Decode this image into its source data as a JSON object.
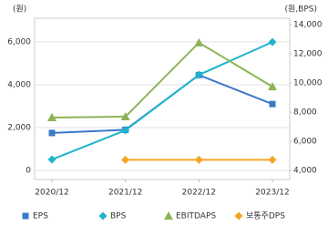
{
  "chart_data": {
    "type": "line",
    "y_label": "(원)",
    "y2_label": "(원,BPS)",
    "categories": [
      "2020/12",
      "2021/12",
      "2022/12",
      "2023/12"
    ],
    "series": [
      {
        "name": "EPS",
        "color": "#3b78c8",
        "marker": "square",
        "values": [
          1750,
          1900,
          4450,
          3100
        ]
      },
      {
        "name": "BPS",
        "color": "#1fb4cc",
        "marker": "diamond",
        "axis": "y2",
        "values": [
          4750,
          6750,
          10550,
          12800
        ]
      },
      {
        "name": "EBITDAPS",
        "color": "#8cb456",
        "marker": "triangle",
        "values": [
          2470,
          2510,
          5960,
          3910
        ]
      },
      {
        "name": "보통주DPS",
        "color": "#f5a623",
        "marker": "diamond",
        "values": [
          null,
          500,
          500,
          500
        ]
      }
    ],
    "ylim": [
      -420,
      7100
    ],
    "yticks": [
      0,
      {
        "value": 2000,
        "label": "2,000"
      },
      {
        "value": 4000,
        "label": "4,000"
      },
      {
        "value": 6000,
        "label": "6,000"
      }
    ],
    "y2lim": [
      3380,
      14430
    ],
    "y2ticks": [
      {
        "value": 4000,
        "label": "4,000"
      },
      {
        "value": 6000,
        "label": "6,000"
      },
      {
        "value": 8000,
        "label": "8,000"
      },
      {
        "value": 10000,
        "label": "10,000"
      },
      {
        "value": 12000,
        "label": "12,000"
      },
      {
        "value": 14000,
        "label": "14,000"
      }
    ],
    "grid": true,
    "legend": "bottom"
  }
}
